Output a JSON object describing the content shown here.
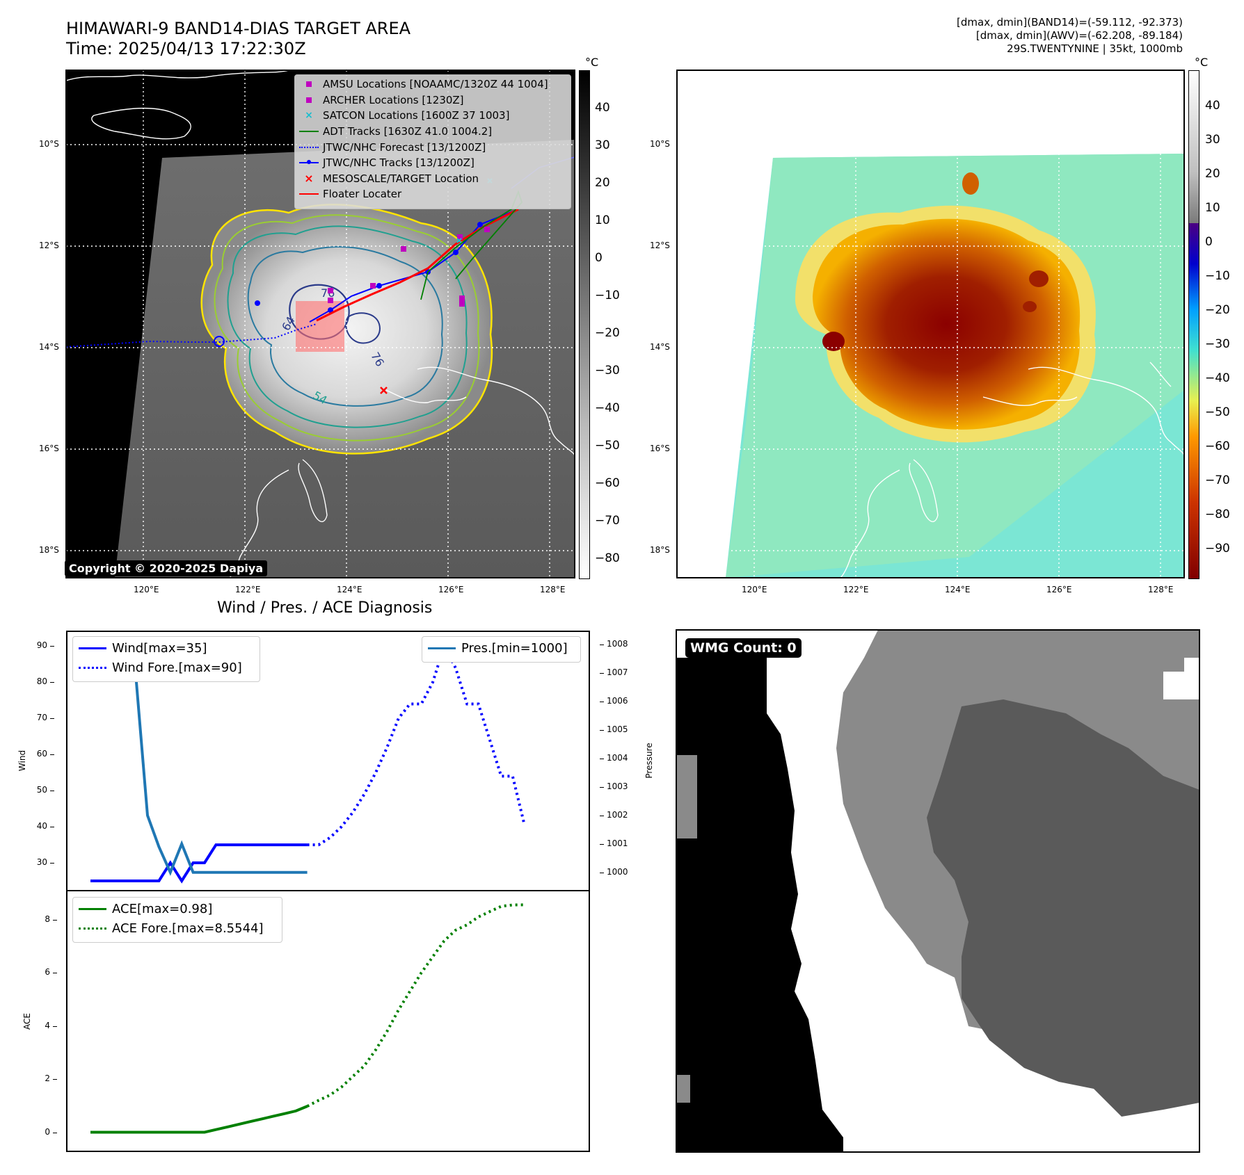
{
  "header": {
    "title_line1": "HIMAWARI-9 BAND14-DIAS TARGET AREA",
    "title_line2": "Time: 2025/04/13 17:22:30Z",
    "info_line1": "[dmax, dmin](BAND14)=(-59.112, -92.373)",
    "info_line2": "[dmax, dmin](AWV)=(-62.208, -89.184)",
    "info_line3": "29S.TWENTYNINE | 35kt, 1000mb"
  },
  "map_ticks": {
    "lat": [
      "10°S",
      "12°S",
      "14°S",
      "16°S",
      "18°S"
    ],
    "lon": [
      "120°E",
      "122°E",
      "124°E",
      "126°E",
      "128°E"
    ]
  },
  "colorbar_gray": {
    "unit": "°C",
    "ticks": [
      "40",
      "30",
      "20",
      "10",
      "0",
      "−10",
      "−20",
      "−30",
      "−40",
      "−50",
      "−60",
      "−70",
      "−80"
    ]
  },
  "colorbar_awv": {
    "unit": "°C",
    "ticks": [
      "40",
      "30",
      "20",
      "10",
      "0",
      "−10",
      "−20",
      "−30",
      "−40",
      "−50",
      "−60",
      "−70",
      "−80",
      "−90"
    ]
  },
  "map_legend": {
    "items": [
      {
        "label": "AMSU Locations [NOAAMC/1320Z 44 1004]",
        "color": "#bf00bf",
        "marker": "square"
      },
      {
        "label": "ARCHER Locations [1230Z]",
        "color": "#bf00bf",
        "marker": "square"
      },
      {
        "label": "SATCON Locations [1600Z 37 1003]",
        "color": "#17becf",
        "marker": "x"
      },
      {
        "label": "ADT Tracks [1630Z 41.0 1004.2]",
        "color": "#008000",
        "marker": "line"
      },
      {
        "label": "JTWC/NHC Forecast [13/1200Z]",
        "color": "#0000ff",
        "marker": "dotted"
      },
      {
        "label": "JTWC/NHC Tracks [13/1200Z]",
        "color": "#0000ff",
        "marker": "line-dot"
      },
      {
        "label": "MESOSCALE/TARGET Location",
        "color": "#ff0000",
        "marker": "x"
      },
      {
        "label": "Floater Locater",
        "color": "#ff0000",
        "marker": "line"
      }
    ]
  },
  "copyright": "Copyright © 2020-2025 Dapiya",
  "contour_labels": [
    "76",
    "64",
    "54",
    "76"
  ],
  "wind_panel": {
    "title": "Wind / Pres. / ACE Diagnosis",
    "ylabel_left": "Wind",
    "ylabel_right": "Pressure",
    "legend_left": [
      "Wind[max=35]",
      "Wind Fore.[max=90]"
    ],
    "legend_right": [
      "Pres.[min=1000]"
    ],
    "wind_ticks": [
      "90",
      "80",
      "70",
      "60",
      "50",
      "40",
      "30"
    ],
    "pres_ticks": [
      "1008",
      "1007",
      "1006",
      "1005",
      "1004",
      "1003",
      "1002",
      "1001",
      "1000"
    ]
  },
  "ace_panel": {
    "ylabel": "ACE",
    "legend": [
      "ACE[max=0.98]",
      "ACE Fore.[max=8.5544]"
    ],
    "ticks": [
      "8",
      "6",
      "4",
      "2",
      "0"
    ]
  },
  "wmg": {
    "label": "WMG Count: 0"
  },
  "chart_data": [
    {
      "type": "line",
      "panel": "wind",
      "x": [
        0,
        1,
        2,
        3,
        4,
        5,
        6,
        7,
        8,
        9,
        10,
        11,
        12,
        13,
        14,
        15,
        16,
        17,
        18,
        19
      ],
      "series": [
        {
          "name": "Wind[max=35]",
          "values": [
            25,
            25,
            25,
            25,
            25,
            25,
            25,
            30,
            25,
            30,
            30,
            35,
            35,
            35,
            35,
            35,
            35,
            35,
            35,
            35
          ],
          "color": "#0000ff",
          "style": "solid"
        },
        {
          "name": "Wind Fore.[max=90]",
          "x": [
            19,
            20,
            21,
            22,
            23,
            24,
            25,
            26,
            27,
            28,
            29,
            30,
            31,
            32,
            33,
            34,
            35,
            36,
            37,
            38
          ],
          "values": [
            35,
            35,
            37,
            40,
            44,
            49,
            55,
            62,
            70,
            74,
            74,
            80,
            90,
            84,
            74,
            74,
            64,
            54,
            54,
            41
          ],
          "color": "#0000ff",
          "style": "dotted"
        },
        {
          "name": "Pres.[min=1000]",
          "values": [
            1008,
            1007.4,
            1007.4,
            1006.8,
            1006.8,
            1002,
            1000.9,
            1000,
            1001,
            1000,
            1000,
            1000,
            1000,
            1000,
            1000,
            1000,
            1000,
            1000,
            1000,
            1000
          ],
          "color": "#1f77b4",
          "style": "solid",
          "axis": "right"
        }
      ],
      "ylim_left": [
        25,
        92
      ],
      "ylim_right": [
        999.7,
        1008.2
      ]
    },
    {
      "type": "line",
      "panel": "ace",
      "x": [
        0,
        1,
        2,
        3,
        4,
        5,
        6,
        7,
        8,
        9,
        10,
        11,
        12,
        13,
        14,
        15,
        16,
        17,
        18,
        19
      ],
      "series": [
        {
          "name": "ACE[max=0.98]",
          "values": [
            0,
            0,
            0,
            0,
            0,
            0,
            0,
            0,
            0,
            0,
            0,
            0.1,
            0.2,
            0.3,
            0.4,
            0.5,
            0.6,
            0.7,
            0.8,
            0.98
          ],
          "color": "#008000",
          "style": "solid"
        },
        {
          "name": "ACE Fore.[max=8.5544]",
          "x": [
            19,
            20,
            21,
            22,
            23,
            24,
            25,
            26,
            27,
            28,
            29,
            30,
            31,
            32,
            33,
            34,
            35,
            36,
            37,
            38
          ],
          "values": [
            0.98,
            1.2,
            1.4,
            1.7,
            2.1,
            2.5,
            3.1,
            3.8,
            4.6,
            5.3,
            6.0,
            6.6,
            7.2,
            7.6,
            7.8,
            8.1,
            8.3,
            8.5,
            8.55,
            8.5544
          ],
          "color": "#008000",
          "style": "dotted"
        }
      ],
      "ylim": [
        -0.3,
        8.8
      ]
    }
  ]
}
